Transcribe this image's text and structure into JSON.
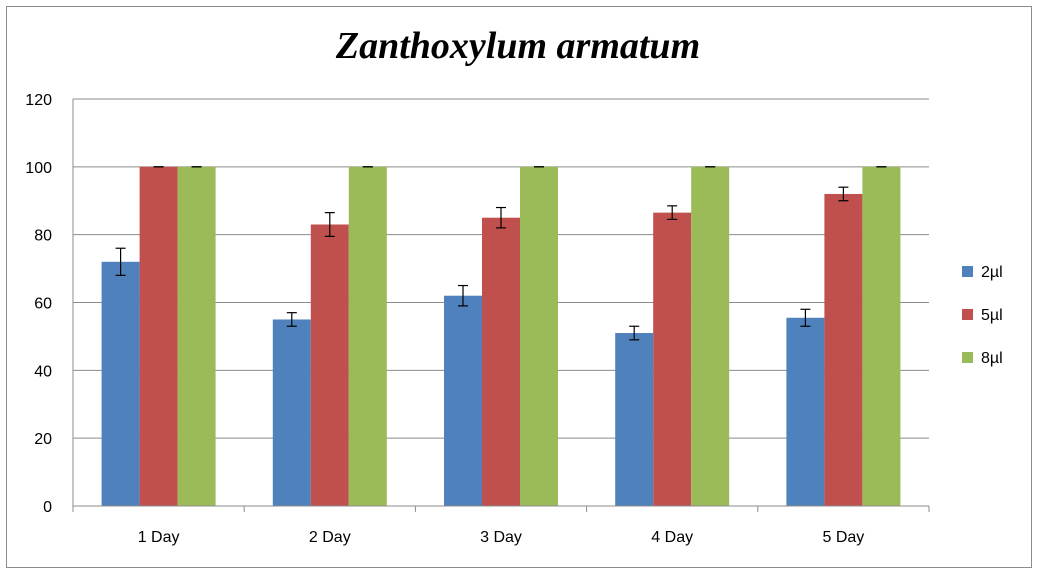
{
  "chart_data": {
    "type": "bar",
    "title": "Zanthoxylum armatum",
    "xlabel": "",
    "ylabel": "",
    "categories": [
      "1 Day",
      "2 Day",
      "3 Day",
      "4 Day",
      "5 Day"
    ],
    "ylim": [
      0,
      120
    ],
    "yticks": [
      0,
      20,
      40,
      60,
      80,
      100,
      120
    ],
    "ytick_labels": [
      "0",
      "20",
      "40",
      "60",
      "80",
      "100",
      "120"
    ],
    "grid": true,
    "legend_position": "right",
    "series": [
      {
        "name": "2µl",
        "color": "#4f81bd",
        "values": [
          72,
          55,
          62,
          51,
          55.5
        ],
        "errors": [
          4,
          2,
          3,
          2,
          2.5
        ]
      },
      {
        "name": "5µl",
        "color": "#c0504d",
        "values": [
          100,
          83,
          85,
          86.5,
          92
        ],
        "errors": [
          0,
          3.5,
          3,
          2,
          2
        ]
      },
      {
        "name": "8µl",
        "color": "#9bbb59",
        "values": [
          100,
          100,
          100,
          100,
          100
        ],
        "errors": [
          0,
          0,
          0,
          0,
          0
        ]
      }
    ]
  }
}
